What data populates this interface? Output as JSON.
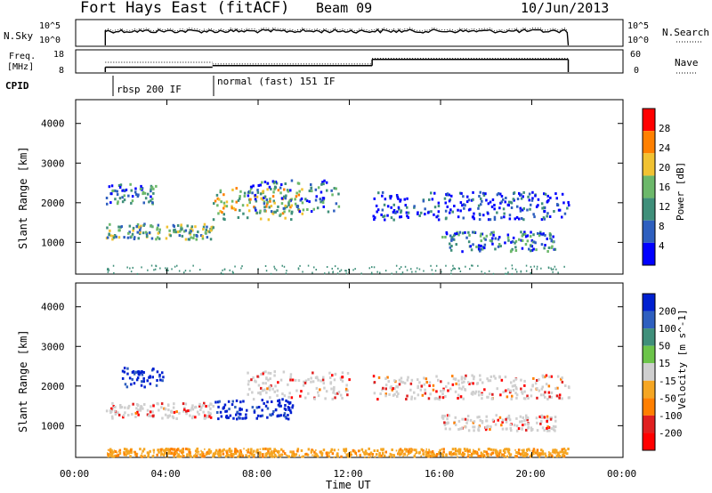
{
  "header": {
    "station": "Fort Hays East (fitACF)",
    "beam": "Beam 09",
    "date": "10/Jun/2013"
  },
  "status_panels": {
    "nsky_label": "N.Sky",
    "nsky_ticks": [
      "10^5",
      "10^0"
    ],
    "nsearch_label": "N.Search",
    "nsearch_ticks": [
      "10^5",
      "10^0"
    ],
    "freq_label_1": "Freq.",
    "freq_label_2": "[MHz]",
    "freq_ticks": [
      "18",
      "8"
    ],
    "nave_label": "Nave",
    "nave_ticks": [
      "60",
      "0"
    ],
    "cpid_label": "CPID",
    "cpid_segments": [
      {
        "name": "rbsp 200 IF",
        "start": 1.3
      },
      {
        "name": "normal (fast) 151 IF",
        "start": 6.0
      }
    ],
    "freq_steps": [
      {
        "start": 1.3,
        "end": 6.0,
        "value": 10.5
      },
      {
        "start": 6.0,
        "end": 13.0,
        "value": 11.3
      },
      {
        "start": 13.0,
        "end": 21.6,
        "value": 14.5
      }
    ],
    "nave_steps": [
      {
        "start": 1.3,
        "end": 6.0,
        "value": 30
      },
      {
        "start": 6.0,
        "end": 13.0,
        "value": 25
      },
      {
        "start": 13.0,
        "end": 21.6,
        "value": 42
      }
    ]
  },
  "chart_data": [
    {
      "type": "heatmap",
      "name": "power",
      "ylabel": "Slant Range [km]",
      "xlim": [
        0,
        24
      ],
      "ylim": [
        200,
        4600
      ],
      "yticks": [
        "1000",
        "2000",
        "3000",
        "4000"
      ],
      "colorbar": {
        "label": "Power [dB]",
        "ticks": [
          "4",
          "8",
          "12",
          "16",
          "20",
          "24",
          "28"
        ],
        "range": [
          0,
          30
        ],
        "colors": [
          "#0000ff",
          "#2e5fbf",
          "#3f8f7a",
          "#6cb86a",
          "#f1c232",
          "#ff8000",
          "#ff0000"
        ]
      },
      "scatter_bands": [
        {
          "t0": 1.3,
          "t1": 6.0,
          "r0": 1100,
          "r1": 1500,
          "level": 16
        },
        {
          "t0": 1.3,
          "t1": 3.5,
          "r0": 2000,
          "r1": 2500,
          "level": 12
        },
        {
          "t0": 6.0,
          "t1": 10.0,
          "r0": 1600,
          "r1": 2400,
          "level": 18
        },
        {
          "t0": 7.5,
          "t1": 11.5,
          "r0": 1800,
          "r1": 2600,
          "level": 10
        },
        {
          "t0": 13.0,
          "t1": 21.6,
          "r0": 1600,
          "r1": 2300,
          "level": 8
        },
        {
          "t0": 16.0,
          "t1": 21.0,
          "r0": 800,
          "r1": 1300,
          "level": 10
        }
      ]
    },
    {
      "type": "heatmap",
      "name": "velocity",
      "xlabel": "Time UT",
      "ylabel": "Slant Range [km]",
      "xlim": [
        0,
        24
      ],
      "ylim": [
        200,
        4600
      ],
      "xticks": [
        "00:00",
        "04:00",
        "08:00",
        "12:00",
        "16:00",
        "20:00",
        "00:00"
      ],
      "yticks": [
        "1000",
        "2000",
        "3000",
        "4000"
      ],
      "colorbar": {
        "label": "Velocity [m s^-1]",
        "ticks": [
          "200",
          "100",
          "50",
          "15",
          "-15",
          "-50",
          "-100",
          "-200"
        ],
        "colors": [
          "#0020d0",
          "#2e5fbf",
          "#3f8f7a",
          "#6cc44a",
          "#cfcfcf",
          "#f5a623",
          "#ff7f00",
          "#e02020",
          "#ff0000"
        ]
      },
      "scatter_bands": [
        {
          "t0": 2.0,
          "t1": 3.8,
          "r0": 2000,
          "r1": 2500,
          "level": 200
        },
        {
          "t0": 6.0,
          "t1": 9.5,
          "r0": 1200,
          "r1": 1700,
          "level": 200
        },
        {
          "t0": 1.3,
          "t1": 6.0,
          "r0": 1200,
          "r1": 1600,
          "level": 0
        },
        {
          "t0": 7.5,
          "t1": 12.0,
          "r0": 1700,
          "r1": 2400,
          "level": 0
        },
        {
          "t0": 13.0,
          "t1": 21.6,
          "r0": 1700,
          "r1": 2300,
          "level": 0
        },
        {
          "t0": 16.0,
          "t1": 21.0,
          "r0": 900,
          "r1": 1300,
          "level": 0
        },
        {
          "t0": 1.3,
          "t1": 21.6,
          "r0": 250,
          "r1": 450,
          "level": -50
        }
      ]
    }
  ]
}
